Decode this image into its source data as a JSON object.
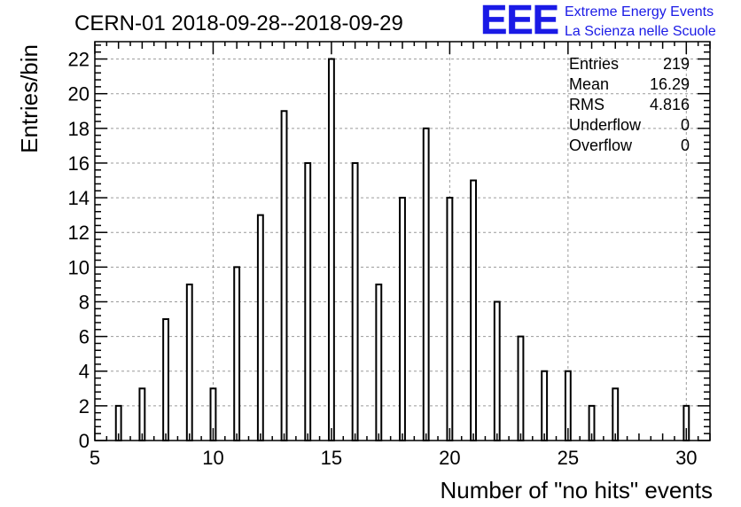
{
  "chart_data": {
    "type": "bar",
    "title": "CERN-01 2018-09-28--2018-09-29",
    "xlabel": "Number of \"no hits\" events",
    "ylabel": "Entries/bin",
    "xlim": [
      5,
      31
    ],
    "ylim": [
      0,
      23
    ],
    "grid": true,
    "x_ticks": [
      5,
      10,
      15,
      20,
      25,
      30
    ],
    "y_ticks": [
      0,
      2,
      4,
      6,
      8,
      10,
      12,
      14,
      16,
      18,
      20,
      22
    ],
    "x": [
      6,
      7,
      8,
      9,
      10,
      11,
      12,
      13,
      14,
      15,
      16,
      17,
      18,
      19,
      20,
      21,
      22,
      23,
      24,
      25,
      26,
      27,
      30
    ],
    "values": [
      2,
      3,
      7,
      9,
      3,
      10,
      13,
      19,
      16,
      22,
      16,
      9,
      14,
      18,
      14,
      15,
      8,
      6,
      4,
      4,
      2,
      3,
      2
    ],
    "stats": [
      {
        "label": "Entries",
        "value": "219"
      },
      {
        "label": "Mean",
        "value": "16.29"
      },
      {
        "label": "RMS",
        "value": "4.816"
      },
      {
        "label": "Underflow",
        "value": "0"
      },
      {
        "label": "Overflow",
        "value": "0"
      }
    ]
  },
  "logo": {
    "mark": "EEE",
    "line1": "Extreme Energy Events",
    "line2": "La Scienza nelle Scuole",
    "color": "#1a1ae6"
  }
}
